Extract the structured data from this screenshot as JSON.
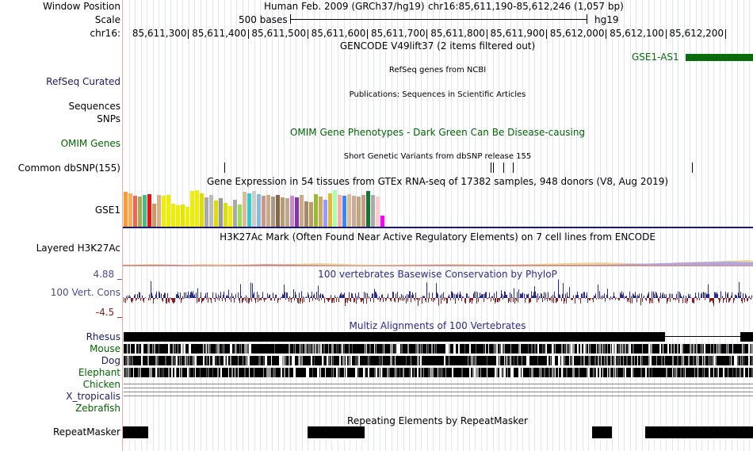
{
  "labels": {
    "window_position": "Window Position",
    "scale": "Scale",
    "chrom": "chr16:",
    "refseq": "RefSeq Curated",
    "sequences": "Sequences",
    "snps": "SNPs",
    "omim": "OMIM Genes",
    "dbsnp": "Common dbSNP(155)",
    "gse1": "GSE1",
    "h3k27ac": "Layered H3K27Ac",
    "cons": "100 Vert. Cons",
    "cons_max": "4.88 _",
    "cons_min": "-4.5 _",
    "species": [
      "Rhesus",
      "Mouse",
      "Dog",
      "Elephant",
      "Chicken",
      "X_tropicalis",
      "Zebrafish"
    ],
    "repeatmasker": "RepeatMasker"
  },
  "header": {
    "assembly": "Human Feb. 2009 (GRCh37/hg19)",
    "position": "chr16:85,611,190-85,612,246 (1,057 bp)",
    "scale_text": "500 bases",
    "scale_db": "hg19",
    "coordinates": [
      "85,611,300",
      "85,611,400",
      "85,611,500",
      "85,611,600",
      "85,611,700",
      "85,611,800",
      "85,611,900",
      "85,612,000",
      "85,612,100",
      "85,612,200"
    ]
  },
  "tracks": {
    "gencode_title": "GENCODE V49lift37 (2 items filtered out)",
    "gencode_gene": "GSE1-AS1",
    "refseq_title": "RefSeq genes from NCBI",
    "publications_title": "Publications: Sequences in Scientific Articles",
    "omim_title": "OMIM Gene Phenotypes - Dark Green Can Be Disease-causing",
    "dbsnp_title": "Short Genetic Variants from dbSNP release 155",
    "gtex_title": "Gene Expression in 54 tissues from GTEx RNA-seq of 17382 samples, 948 donors (V8, Aug 2019)",
    "h3k27ac_title": "H3K27Ac Mark (Often Found Near Active Regulatory Elements) on 7 cell lines from ENCODE",
    "cons_title": "100 vertebrates Basewise Conservation by PhyloP",
    "multiz_title": "Multiz Alignments of 100 Vertebrates",
    "repeat_title": "Repeating Elements by RepeatMasker"
  },
  "gtex": {
    "values": [
      0.95,
      0.92,
      0.85,
      0.82,
      0.87,
      0.9,
      0.62,
      0.88,
      0.84,
      0.86,
      0.62,
      0.58,
      0.6,
      0.55,
      0.98,
      1.0,
      0.92,
      0.8,
      0.88,
      0.72,
      0.78,
      0.65,
      0.56,
      0.74,
      0.6,
      0.95,
      0.92,
      0.97,
      0.9,
      0.85,
      0.88,
      0.82,
      0.86,
      0.8,
      0.78,
      0.85,
      0.8,
      0.88,
      0.7,
      0.68,
      0.9,
      0.82,
      0.74,
      0.92,
      1.0,
      0.88,
      0.84,
      0.9,
      0.85,
      0.82,
      0.86,
      0.97,
      0.88,
      0.82,
      0.3
    ],
    "colors": [
      "#ff9933",
      "#ffaa55",
      "#ee6655",
      "#aaaa55",
      "#44bb88",
      "#ee1111",
      "#cc9966",
      "#dbb08a",
      "#eeee00",
      "#eeee00",
      "#eeee00",
      "#eeee00",
      "#e5e500",
      "#eeee00",
      "#eeee00",
      "#eeee00",
      "#dddd00",
      "#aaaaaa",
      "#bbbbbb",
      "#dddd00",
      "#999999",
      "#dddd11",
      "#eeee00",
      "#aaaaaa",
      "#99dd55",
      "#ddbb99",
      "#33cccc",
      "#cccccc",
      "#88bbdd",
      "#cc9988",
      "#ccaa88",
      "#aa9988",
      "#886644",
      "#bb9977",
      "#bbaa88",
      "#cc88cc",
      "#8833aa",
      "#ccaa88",
      "#aa8866",
      "#bb9966",
      "#99bb33",
      "#ccaa66",
      "#9999ff",
      "#ddbb33",
      "#aaffaa",
      "#ffaaaa",
      "#3388ff",
      "#ddbb99",
      "#ccaa99",
      "#bbaa77",
      "#cc9988",
      "#117733",
      "#aaaaaa",
      "#ffcccc",
      "#ff00ff"
    ]
  },
  "dbsnp_positions": [
    85611360,
    85611806,
    85611810,
    85611827,
    85611843,
    85612144
  ],
  "repeats": [
    [
      85611190,
      85611232
    ],
    [
      85611500,
      85611595
    ],
    [
      85611977,
      85612009
    ],
    [
      85612065,
      85612246
    ]
  ],
  "colors": {
    "gencode": "#0a6b0a",
    "navy": "#1a1a66",
    "green": "#006600",
    "cons_pos": "#2b2b8c",
    "cons_neg": "#8b1a1a",
    "gridline": "#ccccee"
  }
}
